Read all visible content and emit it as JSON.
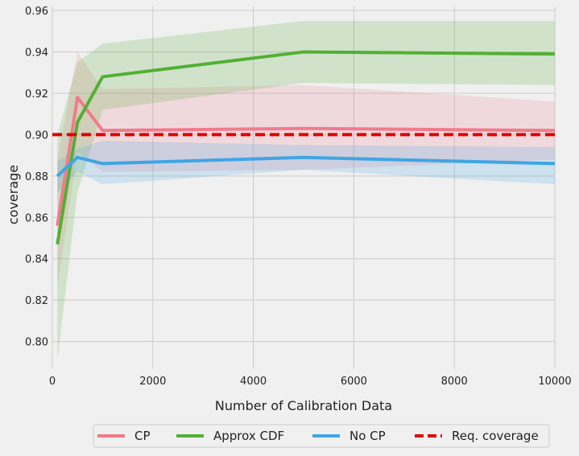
{
  "chart_data": {
    "type": "line",
    "xlabel": "Number of Calibration Data",
    "ylabel": "coverage",
    "xlim": [
      0,
      10000
    ],
    "ylim": [
      0.787,
      0.962
    ],
    "x_ticks": [
      0,
      2000,
      4000,
      6000,
      8000,
      10000
    ],
    "y_ticks": [
      0.8,
      0.82,
      0.84,
      0.86,
      0.88,
      0.9,
      0.92,
      0.94,
      0.96
    ],
    "grid": true,
    "legend_position": "bottom",
    "series": [
      {
        "name": "CP",
        "color": "#f07b8c",
        "x": [
          100,
          500,
          1000,
          5000,
          10000
        ],
        "values": [
          0.856,
          0.918,
          0.902,
          0.903,
          0.902
        ],
        "band_upper": [
          0.888,
          0.94,
          0.922,
          0.924,
          0.916
        ],
        "band_lower": [
          0.826,
          0.892,
          0.882,
          0.883,
          0.888
        ]
      },
      {
        "name": "Approx CDF",
        "color": "#52b033",
        "x": [
          100,
          500,
          1000,
          5000,
          10000
        ],
        "values": [
          0.847,
          0.906,
          0.928,
          0.94,
          0.939
        ],
        "band_upper": [
          0.9,
          0.935,
          0.944,
          0.955,
          0.955
        ],
        "band_lower": [
          0.791,
          0.872,
          0.912,
          0.925,
          0.924
        ]
      },
      {
        "name": "No CP",
        "color": "#3fa5e5",
        "x": [
          100,
          500,
          1000,
          5000,
          10000
        ],
        "values": [
          0.88,
          0.889,
          0.886,
          0.889,
          0.886
        ],
        "band_upper": [
          0.887,
          0.893,
          0.897,
          0.895,
          0.894
        ],
        "band_lower": [
          0.872,
          0.882,
          0.876,
          0.883,
          0.876
        ]
      },
      {
        "name": "Req. coverage",
        "color": "#e00000",
        "dashed": true,
        "x": [
          0,
          10000
        ],
        "values": [
          0.9,
          0.9
        ]
      }
    ]
  }
}
